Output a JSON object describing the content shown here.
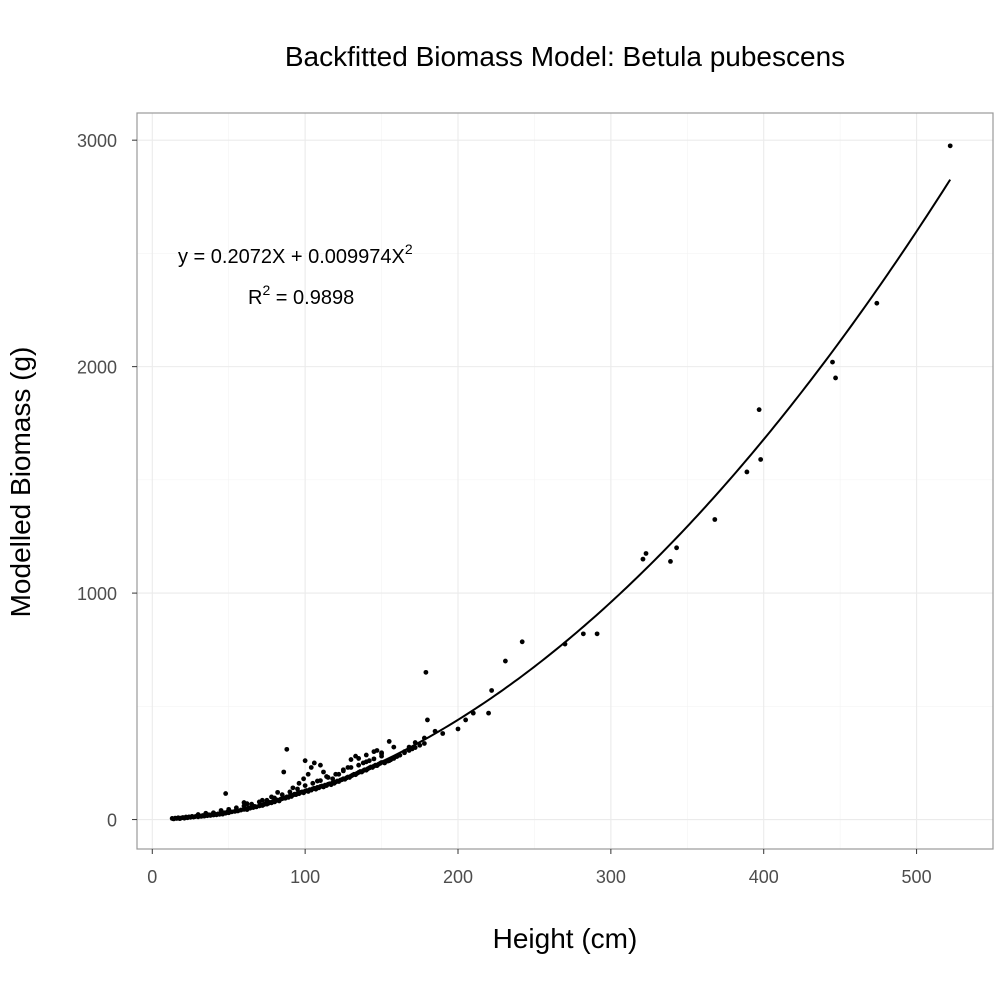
{
  "chart_data": {
    "type": "scatter",
    "title": "Backfitted Biomass Model: Betula pubescens",
    "xlabel": "Height (cm)",
    "ylabel": "Modelled Biomass (g)",
    "xlim": [
      -10,
      550
    ],
    "ylim": [
      -130,
      3120
    ],
    "x_ticks": [
      0,
      100,
      200,
      300,
      400,
      500
    ],
    "y_ticks": [
      0,
      1000,
      2000,
      3000
    ],
    "grid": true,
    "legend": "none",
    "colors": {
      "points": "#000000",
      "line": "#000000",
      "panel_border": "#999999",
      "grid": "#ebebeb"
    },
    "annotation": {
      "equation_prefix": "y = 0.2072X + 0.009974X",
      "equation_superscript": "2",
      "r2_prefix": "R",
      "r2_superscript": "2",
      "r2_suffix": " = 0.9898"
    },
    "fit": {
      "a": 0.2072,
      "b": 0.009974,
      "x_range": [
        13,
        522
      ]
    },
    "points": [
      [
        13,
        5
      ],
      [
        14,
        3
      ],
      [
        15,
        6
      ],
      [
        16,
        5
      ],
      [
        17,
        8
      ],
      [
        18,
        4
      ],
      [
        19,
        7
      ],
      [
        20,
        9
      ],
      [
        21,
        6
      ],
      [
        22,
        11
      ],
      [
        23,
        8
      ],
      [
        24,
        12
      ],
      [
        25,
        10
      ],
      [
        26,
        14
      ],
      [
        27,
        11
      ],
      [
        28,
        13
      ],
      [
        29,
        15
      ],
      [
        30,
        12
      ],
      [
        31,
        16
      ],
      [
        32,
        14
      ],
      [
        33,
        18
      ],
      [
        34,
        15
      ],
      [
        35,
        19
      ],
      [
        36,
        17
      ],
      [
        37,
        21
      ],
      [
        38,
        18
      ],
      [
        39,
        22
      ],
      [
        40,
        20
      ],
      [
        41,
        24
      ],
      [
        42,
        21
      ],
      [
        43,
        25
      ],
      [
        44,
        23
      ],
      [
        45,
        27
      ],
      [
        46,
        24
      ],
      [
        47,
        30
      ],
      [
        48,
        28
      ],
      [
        49,
        33
      ],
      [
        50,
        30
      ],
      [
        52,
        34
      ],
      [
        54,
        36
      ],
      [
        55,
        40
      ],
      [
        56,
        38
      ],
      [
        58,
        42
      ],
      [
        60,
        45
      ],
      [
        61,
        48
      ],
      [
        62,
        44
      ],
      [
        63,
        52
      ],
      [
        64,
        50
      ],
      [
        65,
        55
      ],
      [
        66,
        53
      ],
      [
        67,
        58
      ],
      [
        68,
        56
      ],
      [
        70,
        60
      ],
      [
        71,
        64
      ],
      [
        72,
        62
      ],
      [
        73,
        66
      ],
      [
        74,
        70
      ],
      [
        75,
        68
      ],
      [
        76,
        72
      ],
      [
        77,
        76
      ],
      [
        78,
        74
      ],
      [
        79,
        80
      ],
      [
        80,
        78
      ],
      [
        81,
        84
      ],
      [
        82,
        86
      ],
      [
        83,
        82
      ],
      [
        84,
        90
      ],
      [
        85,
        92
      ],
      [
        86,
        96
      ],
      [
        87,
        94
      ],
      [
        88,
        100
      ],
      [
        89,
        98
      ],
      [
        90,
        104
      ],
      [
        91,
        102
      ],
      [
        92,
        108
      ],
      [
        93,
        112
      ],
      [
        94,
        110
      ],
      [
        95,
        116
      ],
      [
        96,
        114
      ],
      [
        97,
        120
      ],
      [
        98,
        122
      ],
      [
        99,
        118
      ],
      [
        100,
        126
      ],
      [
        101,
        128
      ],
      [
        102,
        124
      ],
      [
        103,
        132
      ],
      [
        104,
        130
      ],
      [
        105,
        136
      ],
      [
        106,
        138
      ],
      [
        107,
        134
      ],
      [
        108,
        142
      ],
      [
        109,
        140
      ],
      [
        110,
        146
      ],
      [
        111,
        148
      ],
      [
        112,
        144
      ],
      [
        113,
        152
      ],
      [
        114,
        150
      ],
      [
        115,
        156
      ],
      [
        116,
        158
      ],
      [
        117,
        154
      ],
      [
        118,
        162
      ],
      [
        119,
        160
      ],
      [
        120,
        166
      ],
      [
        121,
        170
      ],
      [
        122,
        168
      ],
      [
        123,
        174
      ],
      [
        124,
        176
      ],
      [
        125,
        180
      ],
      [
        126,
        178
      ],
      [
        127,
        184
      ],
      [
        128,
        188
      ],
      [
        129,
        186
      ],
      [
        130,
        192
      ],
      [
        131,
        196
      ],
      [
        132,
        200
      ],
      [
        133,
        198
      ],
      [
        134,
        204
      ],
      [
        135,
        208
      ],
      [
        136,
        212
      ],
      [
        137,
        210
      ],
      [
        138,
        216
      ],
      [
        139,
        220
      ],
      [
        140,
        218
      ],
      [
        141,
        224
      ],
      [
        142,
        228
      ],
      [
        143,
        232
      ],
      [
        144,
        230
      ],
      [
        145,
        236
      ],
      [
        146,
        240
      ],
      [
        147,
        238
      ],
      [
        148,
        244
      ],
      [
        149,
        248
      ],
      [
        150,
        252
      ],
      [
        152,
        250
      ],
      [
        154,
        258
      ],
      [
        156,
        264
      ],
      [
        158,
        270
      ],
      [
        160,
        278
      ],
      [
        162,
        284
      ],
      [
        165,
        295
      ],
      [
        168,
        305
      ],
      [
        170,
        312
      ],
      [
        172,
        318
      ],
      [
        175,
        328
      ],
      [
        178,
        336
      ],
      [
        30,
        22
      ],
      [
        35,
        28
      ],
      [
        40,
        30
      ],
      [
        45,
        40
      ],
      [
        50,
        45
      ],
      [
        55,
        52
      ],
      [
        60,
        60
      ],
      [
        65,
        68
      ],
      [
        70,
        78
      ],
      [
        75,
        85
      ],
      [
        80,
        95
      ],
      [
        85,
        110
      ],
      [
        90,
        122
      ],
      [
        95,
        135
      ],
      [
        100,
        150
      ],
      [
        105,
        160
      ],
      [
        110,
        172
      ],
      [
        115,
        186
      ],
      [
        120,
        200
      ],
      [
        125,
        215
      ],
      [
        130,
        230
      ],
      [
        135,
        240
      ],
      [
        140,
        255
      ],
      [
        145,
        268
      ],
      [
        150,
        280
      ],
      [
        135,
        270
      ],
      [
        140,
        285
      ],
      [
        145,
        300
      ],
      [
        150,
        290
      ],
      [
        155,
        260
      ],
      [
        160,
        280
      ],
      [
        165,
        300
      ],
      [
        48,
        115
      ],
      [
        60,
        75
      ],
      [
        62,
        70
      ],
      [
        72,
        85
      ],
      [
        78,
        100
      ],
      [
        82,
        120
      ],
      [
        86,
        210
      ],
      [
        88,
        310
      ],
      [
        92,
        140
      ],
      [
        96,
        160
      ],
      [
        99,
        180
      ],
      [
        100,
        260
      ],
      [
        102,
        200
      ],
      [
        104,
        230
      ],
      [
        106,
        250
      ],
      [
        108,
        170
      ],
      [
        110,
        240
      ],
      [
        112,
        210
      ],
      [
        114,
        190
      ],
      [
        118,
        180
      ],
      [
        122,
        200
      ],
      [
        125,
        220
      ],
      [
        128,
        230
      ],
      [
        130,
        265
      ],
      [
        133,
        280
      ],
      [
        138,
        250
      ],
      [
        142,
        260
      ],
      [
        147,
        305
      ],
      [
        150,
        295
      ],
      [
        155,
        345
      ],
      [
        158,
        320
      ],
      [
        168,
        320
      ],
      [
        172,
        340
      ],
      [
        178,
        360
      ],
      [
        180,
        440
      ],
      [
        179,
        650
      ],
      [
        185,
        390
      ],
      [
        190,
        380
      ],
      [
        200,
        400
      ],
      [
        205,
        440
      ],
      [
        210,
        470
      ],
      [
        220,
        470
      ],
      [
        222,
        570
      ],
      [
        231,
        700
      ],
      [
        242,
        785
      ],
      [
        270,
        775
      ],
      [
        282,
        820
      ],
      [
        291,
        820
      ],
      [
        321,
        1150
      ],
      [
        323,
        1175
      ],
      [
        339,
        1140
      ],
      [
        343,
        1200
      ],
      [
        368,
        1325
      ],
      [
        389,
        1535
      ],
      [
        397,
        1810
      ],
      [
        398,
        1590
      ],
      [
        445,
        2020
      ],
      [
        447,
        1950
      ],
      [
        474,
        2280
      ],
      [
        522,
        2975
      ]
    ]
  }
}
